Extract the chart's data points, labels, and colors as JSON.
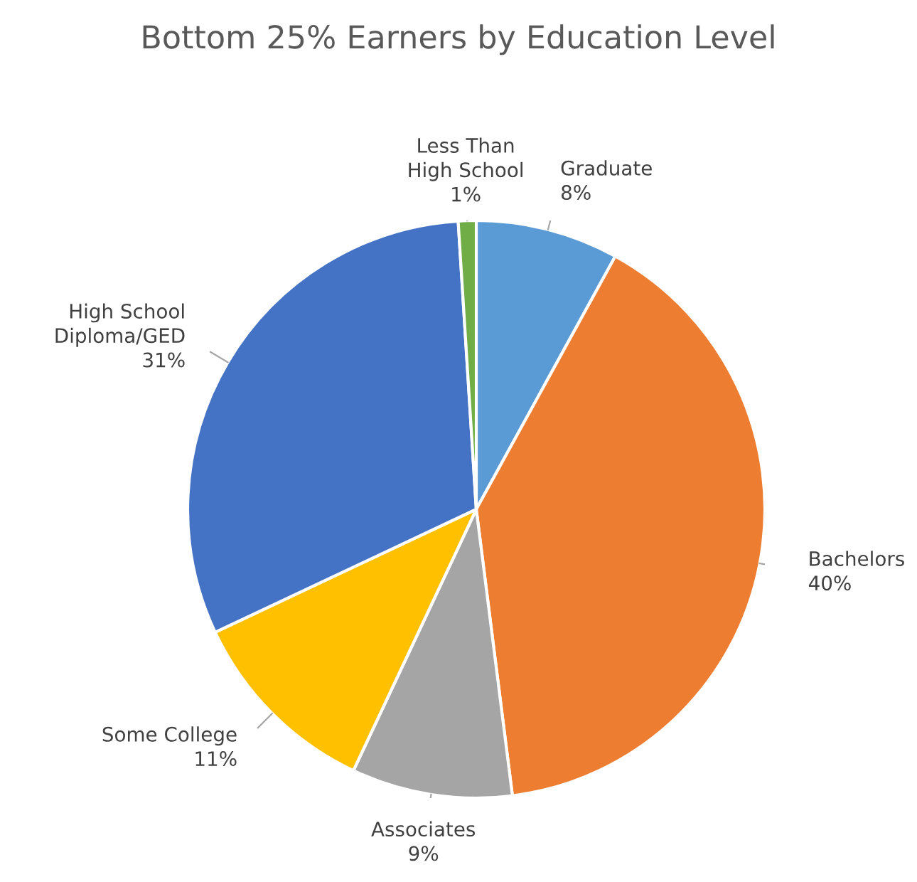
{
  "chart_data": {
    "type": "pie",
    "title": "Bottom 25% Earners by Education Level",
    "categories": [
      "Graduate",
      "Bachelors",
      "Associates",
      "Some College",
      "High School Diploma/GED",
      "Less Than High School"
    ],
    "values": [
      8,
      40,
      9,
      11,
      31,
      1
    ],
    "value_labels": [
      "8%",
      "40%",
      "9%",
      "11%",
      "31%",
      "1%"
    ],
    "colors": [
      "#5b9bd5",
      "#ed7d31",
      "#a5a5a5",
      "#ffc000",
      "#4472c4",
      "#70ad47"
    ]
  }
}
